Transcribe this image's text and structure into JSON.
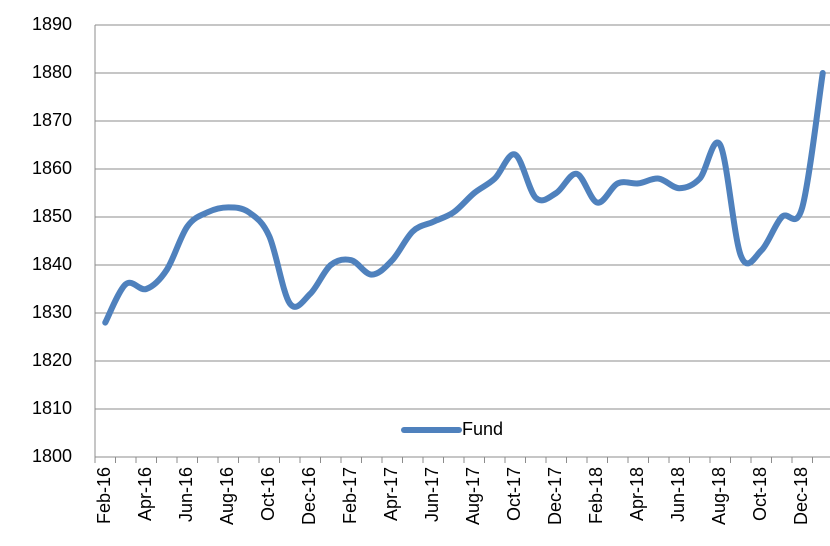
{
  "chart_data": {
    "type": "line",
    "categories": [
      "Feb-16",
      null,
      "Apr-16",
      null,
      "Jun-16",
      null,
      "Aug-16",
      null,
      "Oct-16",
      null,
      "Dec-16",
      null,
      "Feb-17",
      null,
      "Apr-17",
      null,
      "Jun-17",
      null,
      "Aug-17",
      null,
      "Oct-17",
      null,
      "Dec-17",
      null,
      "Feb-18",
      null,
      "Apr-18",
      null,
      "Jun-18",
      null,
      "Aug-18",
      null,
      "Oct-18",
      null,
      "Dec-18",
      null
    ],
    "series": [
      {
        "name": "Fund",
        "color": "#4f81bd",
        "values": [
          1828,
          1836,
          1835,
          1839,
          1848,
          1851,
          1852,
          1851,
          1846,
          1832,
          1834,
          1840,
          1841,
          1838,
          1841,
          1847,
          1849,
          1851,
          1855,
          1858,
          1863,
          1854,
          1855,
          1859,
          1853,
          1857,
          1857,
          1858,
          1856,
          1858,
          1865,
          1842,
          1843,
          1850,
          1852,
          1880
        ]
      }
    ],
    "ylim": [
      1800,
      1890
    ],
    "yticks": [
      1800,
      1810,
      1820,
      1830,
      1840,
      1850,
      1860,
      1870,
      1880,
      1890
    ],
    "grid": true,
    "legend": "lower center"
  }
}
